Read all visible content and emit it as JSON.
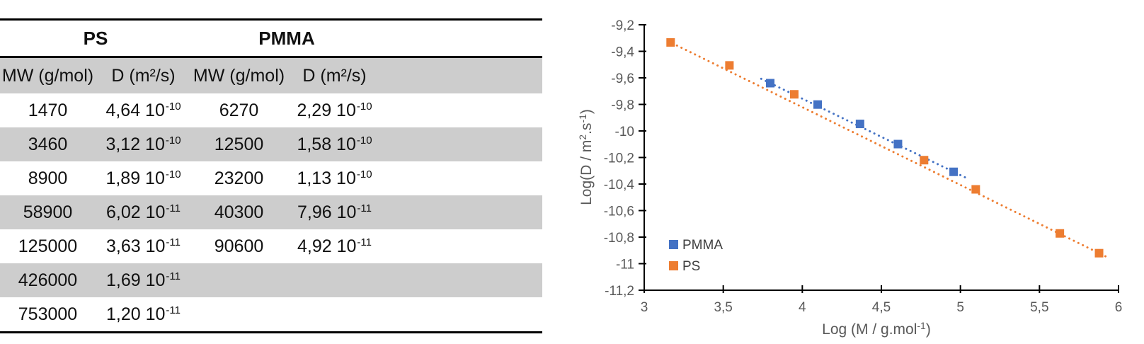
{
  "table": {
    "group_headers": [
      "PS",
      "PMMA"
    ],
    "column_headers": [
      "MW (g/mol)",
      "D (m²/s)",
      "MW (g/mol)",
      "D (m²/s)"
    ],
    "zebra_color": "#CDCDCD",
    "rows": [
      [
        "1470",
        {
          "b": "4,64 10",
          "sup": "-10"
        },
        "6270",
        {
          "b": "2,29 10",
          "sup": "-10"
        }
      ],
      [
        "3460",
        {
          "b": "3,12 10",
          "sup": "-10"
        },
        "12500",
        {
          "b": "1,58 10",
          "sup": "-10"
        }
      ],
      [
        "8900",
        {
          "b": "1,89 10",
          "sup": "-10"
        },
        "23200",
        {
          "b": "1,13 10",
          "sup": "-10"
        }
      ],
      [
        "58900",
        {
          "b": "6,02 10",
          "sup": "-11"
        },
        "40300",
        {
          "b": "7,96 10",
          "sup": "-11"
        }
      ],
      [
        "125000",
        {
          "b": "3,63 10",
          "sup": "-11"
        },
        "90600",
        {
          "b": "4,92 10",
          "sup": "-11"
        }
      ],
      [
        "426000",
        {
          "b": "1,69 10",
          "sup": "-11"
        },
        null,
        null
      ],
      [
        "753000",
        {
          "b": "1,20 10",
          "sup": "-11"
        },
        null,
        null
      ]
    ]
  },
  "chart_data": {
    "type": "scatter",
    "title": "",
    "xlabel": "Log (M / g.mol⁻¹)",
    "ylabel": "Log(D / m².s⁻¹)",
    "xlabel_parts": [
      {
        "t": "Log (M / g.mol"
      },
      {
        "t": "-1",
        "sup": true
      },
      {
        "t": ")"
      }
    ],
    "ylabel_parts": [
      {
        "t": "Log(D / m"
      },
      {
        "t": "2",
        "sup": true
      },
      {
        "t": ".s"
      },
      {
        "t": "-1",
        "sup": true
      },
      {
        "t": ")"
      }
    ],
    "xlim": [
      3,
      6
    ],
    "xstep": 0.5,
    "ylim": [
      -11.2,
      -9.2
    ],
    "ystep": 0.2,
    "grid": false,
    "decimal_separator": ",",
    "axis_color": "#000000",
    "tick_label_color": "#595959",
    "axis_title_color": "#595959",
    "legend_text_color": "#404040",
    "legend_position": "inside-lower-left",
    "series": [
      {
        "name": "PMMA",
        "color": "#4472C4",
        "marker": "square",
        "x": [
          3.797,
          4.097,
          4.365,
          4.605,
          4.957
        ],
        "y": [
          -9.64,
          -9.801,
          -9.947,
          -10.099,
          -10.308
        ],
        "trendline": {
          "style": "dotted",
          "x": [
            3.74,
            5.03
          ],
          "y": [
            -9.607,
            -10.35
          ]
        }
      },
      {
        "name": "PS",
        "color": "#ED7D31",
        "marker": "square",
        "x": [
          3.167,
          3.539,
          3.949,
          4.77,
          5.097,
          5.629,
          5.877
        ],
        "y": [
          -9.333,
          -9.506,
          -9.724,
          -10.22,
          -10.44,
          -10.772,
          -10.921
        ],
        "trendline": {
          "style": "dotted",
          "x": [
            3.15,
            5.93
          ],
          "y": [
            -9.323,
            -10.952
          ]
        }
      }
    ]
  }
}
